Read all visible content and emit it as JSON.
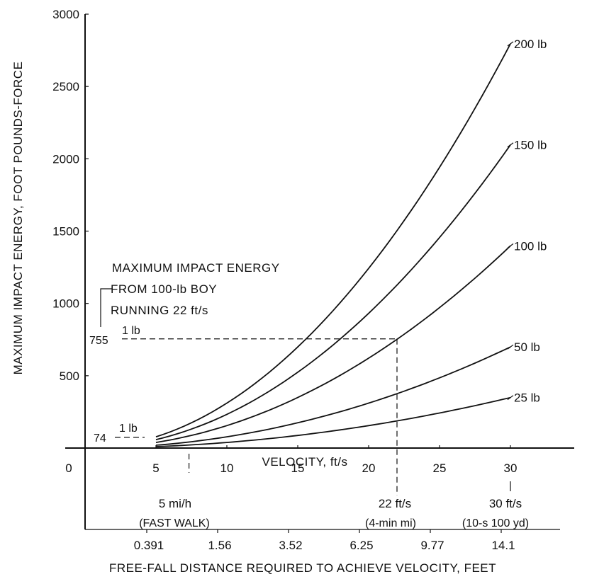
{
  "chart_data": {
    "type": "line",
    "xlabel": "VELOCITY, ft/s",
    "ylabel": "MAXIMUM IMPACT ENERGY, FOOT POUNDS-FORCE",
    "x_ticks": [
      "0",
      "5",
      "10",
      "15",
      "20",
      "25",
      "30"
    ],
    "x_tick_values": [
      0,
      5,
      10,
      15,
      20,
      25,
      30
    ],
    "y_ticks": [
      "500",
      "1000",
      "1500",
      "2000",
      "2500",
      "3000"
    ],
    "y_tick_values": [
      500,
      1000,
      1500,
      2000,
      2500,
      3000
    ],
    "xlim": [
      0,
      34.5
    ],
    "ylim": [
      0,
      3000
    ],
    "grid": false,
    "curve_x_start": 5,
    "curve_x_end": 30,
    "series": [
      {
        "name": "200 lb",
        "weight_lb": 200,
        "x": [
          5,
          10,
          15,
          20,
          25,
          30
        ],
        "y": [
          78,
          311,
          699,
          1242,
          1941,
          2795
        ]
      },
      {
        "name": "150 lb",
        "weight_lb": 150,
        "x": [
          5,
          10,
          15,
          20,
          25,
          30
        ],
        "y": [
          58,
          233,
          524,
          932,
          1456,
          2096
        ]
      },
      {
        "name": "100 lb",
        "weight_lb": 100,
        "x": [
          5,
          10,
          15,
          20,
          25,
          30
        ],
        "y": [
          39,
          155,
          349,
          621,
          970,
          1398
        ]
      },
      {
        "name": "50 lb",
        "weight_lb": 50,
        "x": [
          5,
          10,
          15,
          20,
          25,
          30
        ],
        "y": [
          19,
          78,
          175,
          311,
          485,
          699
        ]
      },
      {
        "name": "25 lb",
        "weight_lb": 25,
        "x": [
          5,
          10,
          15,
          20,
          25,
          30
        ],
        "y": [
          10,
          39,
          87,
          155,
          243,
          349
        ]
      }
    ],
    "annotations": {
      "max_impact_title": [
        "MAXIMUM IMPACT ENERGY",
        "FROM 100-lb BOY",
        "RUNNING 22 ft/s"
      ],
      "value_755": "755",
      "value_74": "74",
      "label_1lb_upper": "1 lb",
      "label_1lb_lower": "1 lb",
      "y_755": 755,
      "y_74": 74,
      "x_22": 22,
      "x_5mph": 7.33,
      "x_30": 30
    },
    "reference_velocities": [
      {
        "x": 7.33,
        "top": "5 mi/h",
        "bottom": "(FAST WALK)"
      },
      {
        "x": 22,
        "top": "22 ft/s",
        "bottom": "(4-min mi)"
      },
      {
        "x": 30,
        "top": "30 ft/s",
        "bottom": "(10-s 100 yd)"
      }
    ],
    "free_fall": {
      "label": "FREE-FALL DISTANCE REQUIRED TO ACHIEVE VELOCITY, FEET",
      "ticks": [
        {
          "label": "0.391",
          "x": 5
        },
        {
          "label": "1.56",
          "x": 10
        },
        {
          "label": "3.52",
          "x": 15
        },
        {
          "label": "6.25",
          "x": 20
        },
        {
          "label": "9.77",
          "x": 25
        },
        {
          "label": "14.1",
          "x": 30
        }
      ]
    }
  }
}
